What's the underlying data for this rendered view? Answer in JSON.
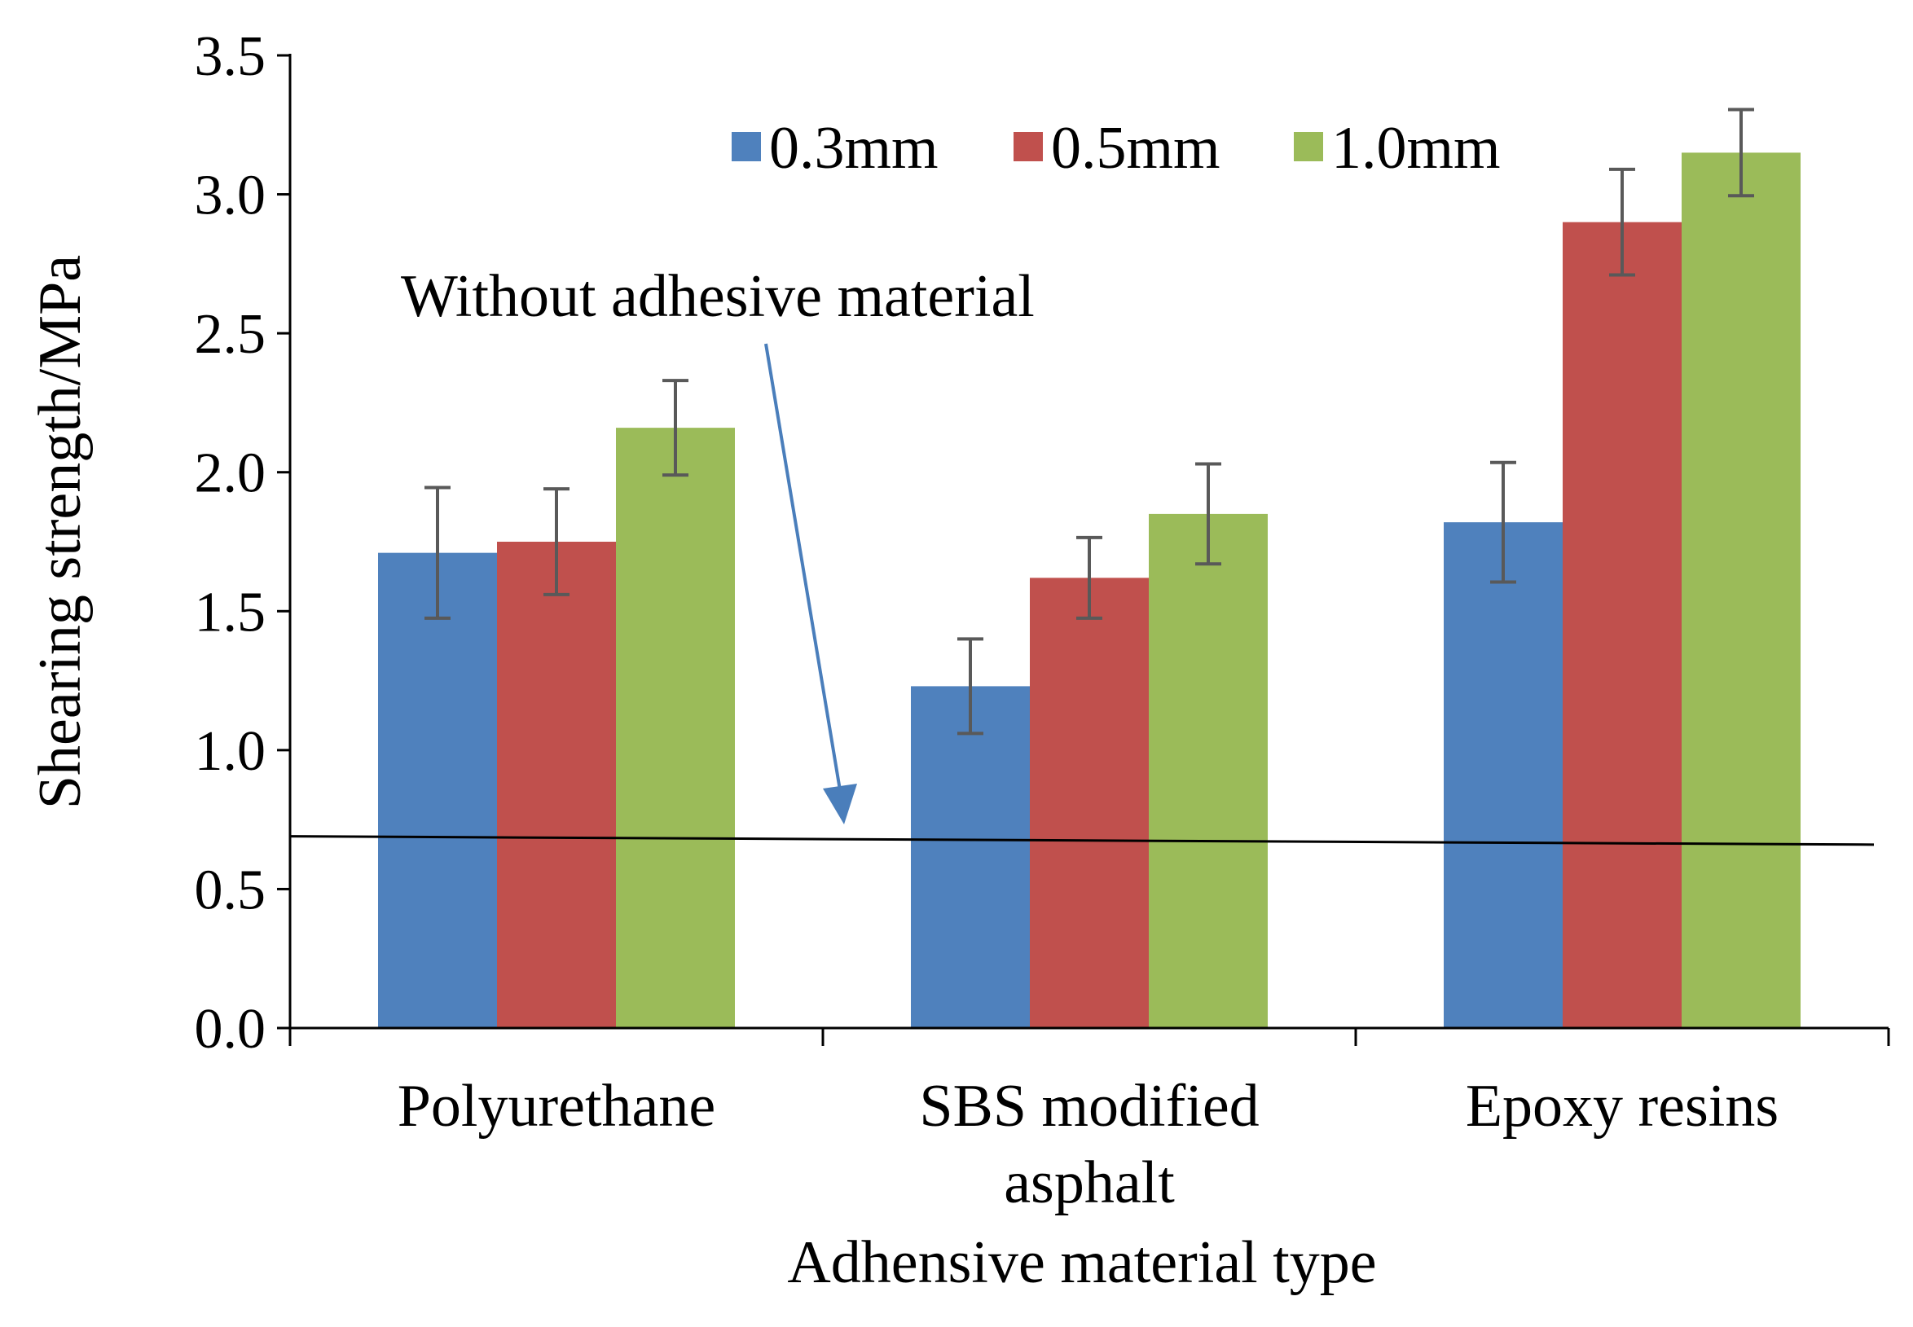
{
  "chart_data": {
    "type": "bar",
    "title": "",
    "xlabel": "Adhensive material type",
    "ylabel": "Shearing strength/MPa",
    "ylim": [
      0,
      3.5
    ],
    "yticks": [
      "0.0",
      "0.5",
      "1.0",
      "1.5",
      "2.0",
      "2.5",
      "3.0",
      "3.5"
    ],
    "categories": [
      [
        "Polyurethane"
      ],
      [
        "SBS modified",
        "asphalt"
      ],
      [
        "Epoxy resins"
      ]
    ],
    "series": [
      {
        "name": "0.3mm",
        "color": "#4F81BD",
        "values": [
          1.71,
          1.23,
          1.82
        ],
        "errors": [
          0.235,
          0.17,
          0.215
        ]
      },
      {
        "name": "0.5mm",
        "color": "#C0504D",
        "values": [
          1.75,
          1.62,
          2.9
        ],
        "errors": [
          0.19,
          0.145,
          0.19
        ]
      },
      {
        "name": "1.0mm",
        "color": "#9BBB59",
        "values": [
          2.16,
          1.85,
          3.15
        ],
        "errors": [
          0.17,
          0.18,
          0.155
        ]
      }
    ],
    "legend_position": "top-right",
    "reference_line": {
      "label": "Without adhesive material",
      "start_value": 0.69,
      "end_value": 0.66,
      "color": "#000000",
      "arrow_color": "#4A7EBB"
    },
    "error_bar_color": "#595959"
  }
}
